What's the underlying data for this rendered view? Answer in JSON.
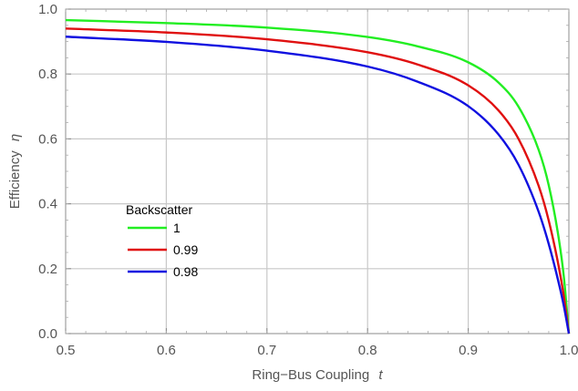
{
  "chart_data": {
    "type": "line",
    "xlabel": "Ring−Bus Coupling",
    "xlabel_symbol": "t",
    "ylabel": "Efficiency",
    "ylabel_symbol": "η",
    "xlim": [
      0.5,
      1.0
    ],
    "ylim": [
      0.0,
      1.0
    ],
    "x_ticks": [
      "0.5",
      "0.6",
      "0.7",
      "0.8",
      "0.9",
      "1.0"
    ],
    "y_ticks": [
      "0.0",
      "0.2",
      "0.4",
      "0.6",
      "0.8",
      "1.0"
    ],
    "grid": true,
    "legend": {
      "title": "Backscatter",
      "placement": "lower-left"
    },
    "series": [
      {
        "name": "1",
        "color": "#22ee22",
        "x": [
          0.5,
          0.6,
          0.7,
          0.8,
          0.85,
          0.9,
          0.93,
          0.95,
          0.97,
          0.98,
          0.99,
          0.995,
          1.0
        ],
        "values": [
          0.966,
          0.957,
          0.943,
          0.914,
          0.885,
          0.836,
          0.774,
          0.699,
          0.566,
          0.457,
          0.292,
          0.175,
          0.0
        ]
      },
      {
        "name": "0.99",
        "color": "#e01010",
        "x": [
          0.5,
          0.6,
          0.7,
          0.8,
          0.85,
          0.9,
          0.93,
          0.95,
          0.97,
          0.98,
          0.99,
          0.995,
          1.0
        ],
        "values": [
          0.94,
          0.928,
          0.907,
          0.867,
          0.829,
          0.765,
          0.688,
          0.6,
          0.455,
          0.348,
          0.205,
          0.115,
          0.0
        ]
      },
      {
        "name": "0.98",
        "color": "#1010e0",
        "x": [
          0.5,
          0.6,
          0.7,
          0.8,
          0.85,
          0.9,
          0.93,
          0.95,
          0.97,
          0.98,
          0.99,
          0.995,
          1.0
        ],
        "values": [
          0.915,
          0.899,
          0.872,
          0.823,
          0.776,
          0.701,
          0.614,
          0.52,
          0.375,
          0.276,
          0.155,
          0.085,
          0.0
        ]
      }
    ]
  }
}
